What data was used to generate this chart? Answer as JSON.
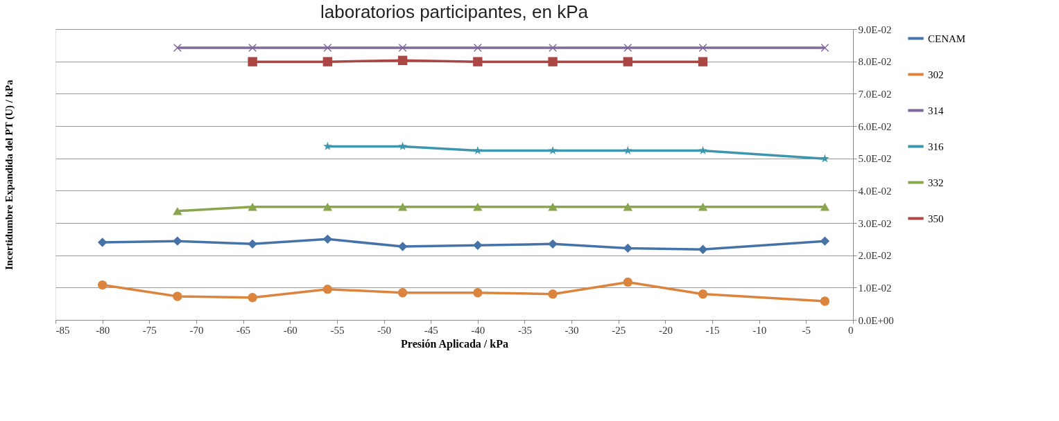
{
  "chart_data": {
    "type": "line",
    "title": "laboratorios participantes, en kPa",
    "xlabel": "Presión Aplicada / kPa",
    "ylabel": "Incertidumbre Expandida del PT (U) / kPa",
    "xlim": [
      -85,
      0
    ],
    "xticks": [
      -85,
      -80,
      -75,
      -70,
      -65,
      -60,
      -55,
      -50,
      -45,
      -40,
      -35,
      -30,
      -25,
      -20,
      -15,
      -10,
      -5,
      0
    ],
    "ylim": [
      0,
      0.09
    ],
    "yticks": [
      {
        "value": 0,
        "label": "0.0E+00"
      },
      {
        "value": 0.01,
        "label": "1.0E-02"
      },
      {
        "value": 0.02,
        "label": "2.0E-02"
      },
      {
        "value": 0.03,
        "label": "3.0E-02"
      },
      {
        "value": 0.04,
        "label": "4.0E-02"
      },
      {
        "value": 0.05,
        "label": "5.0E-02"
      },
      {
        "value": 0.06,
        "label": "6.0E-02"
      },
      {
        "value": 0.07,
        "label": "7.0E-02"
      },
      {
        "value": 0.08,
        "label": "8.0E-02"
      },
      {
        "value": 0.09,
        "label": "9.0E-02"
      }
    ],
    "grid": "y",
    "legend": "right",
    "line_style": "solid",
    "series": [
      {
        "name": "CENAM",
        "color": "#4572a7",
        "marker": "diamond",
        "x": [
          -80,
          -72,
          -64,
          -56,
          -48,
          -40,
          -32,
          -24,
          -16,
          -3
        ],
        "values": [
          0.024,
          0.0244,
          0.0235,
          0.025,
          0.0227,
          0.0231,
          0.0235,
          0.0222,
          0.0218,
          0.0244
        ]
      },
      {
        "name": "302",
        "color": "#db843d",
        "marker": "circle",
        "x": [
          -80,
          -72,
          -64,
          -56,
          -48,
          -40,
          -32,
          -24,
          -16,
          -3
        ],
        "values": [
          0.0108,
          0.0073,
          0.0069,
          0.0095,
          0.0084,
          0.0084,
          0.008,
          0.0117,
          0.008,
          0.0058
        ]
      },
      {
        "name": "314",
        "color": "#80699b",
        "marker": "cross",
        "x": [
          -72,
          -64,
          -56,
          -48,
          -40,
          -32,
          -24,
          -16,
          -3
        ],
        "values": [
          0.0842,
          0.0842,
          0.0842,
          0.0842,
          0.0842,
          0.0842,
          0.0842,
          0.0842,
          0.0842
        ]
      },
      {
        "name": "316",
        "color": "#3d96ae",
        "marker": "star",
        "x": [
          -56,
          -48,
          -40,
          -32,
          -24,
          -16,
          -3
        ],
        "values": [
          0.0537,
          0.0537,
          0.0524,
          0.0524,
          0.0524,
          0.0524,
          0.0499
        ]
      },
      {
        "name": "332",
        "color": "#89a54e",
        "marker": "triangle",
        "x": [
          -72,
          -64,
          -56,
          -48,
          -40,
          -32,
          -24,
          -16,
          -3
        ],
        "values": [
          0.0337,
          0.035,
          0.035,
          0.035,
          0.035,
          0.035,
          0.035,
          0.035,
          0.035
        ]
      },
      {
        "name": "350",
        "color": "#aa4643",
        "marker": "square",
        "x": [
          -64,
          -56,
          -48,
          -40,
          -32,
          -24,
          -16
        ],
        "values": [
          0.0799,
          0.0799,
          0.0803,
          0.0799,
          0.0799,
          0.0799,
          0.0799
        ]
      }
    ]
  }
}
